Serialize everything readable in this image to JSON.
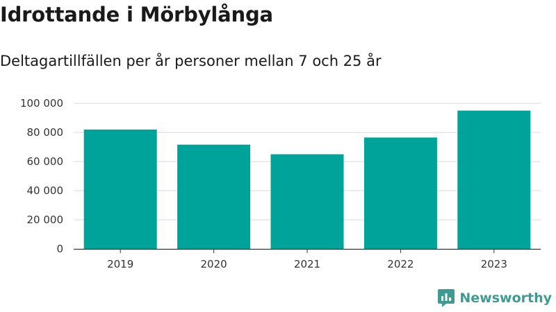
{
  "header": {
    "title": "Idrottande i Mörbylånga",
    "subtitle": "Deltagartillfällen per år personer mellan 7 och 25 år"
  },
  "brand": {
    "name": "Newsworthy",
    "icon": "newsworthy-logo-icon",
    "color": "#3f9a92"
  },
  "colors": {
    "bar": "#00a39a",
    "grid": "#d9d9d9",
    "axis": "#333333"
  },
  "chart_data": {
    "type": "bar",
    "categories": [
      "2019",
      "2020",
      "2021",
      "2022",
      "2023"
    ],
    "values": [
      82000,
      71600,
      65000,
      76500,
      95000
    ],
    "ylim": [
      0,
      100000
    ],
    "yticks": [
      0,
      20000,
      40000,
      60000,
      80000,
      100000
    ],
    "ytick_labels": [
      "0",
      "20 000",
      "40 000",
      "60 000",
      "80 000",
      "100 000"
    ],
    "grid": true,
    "legend": "none"
  }
}
